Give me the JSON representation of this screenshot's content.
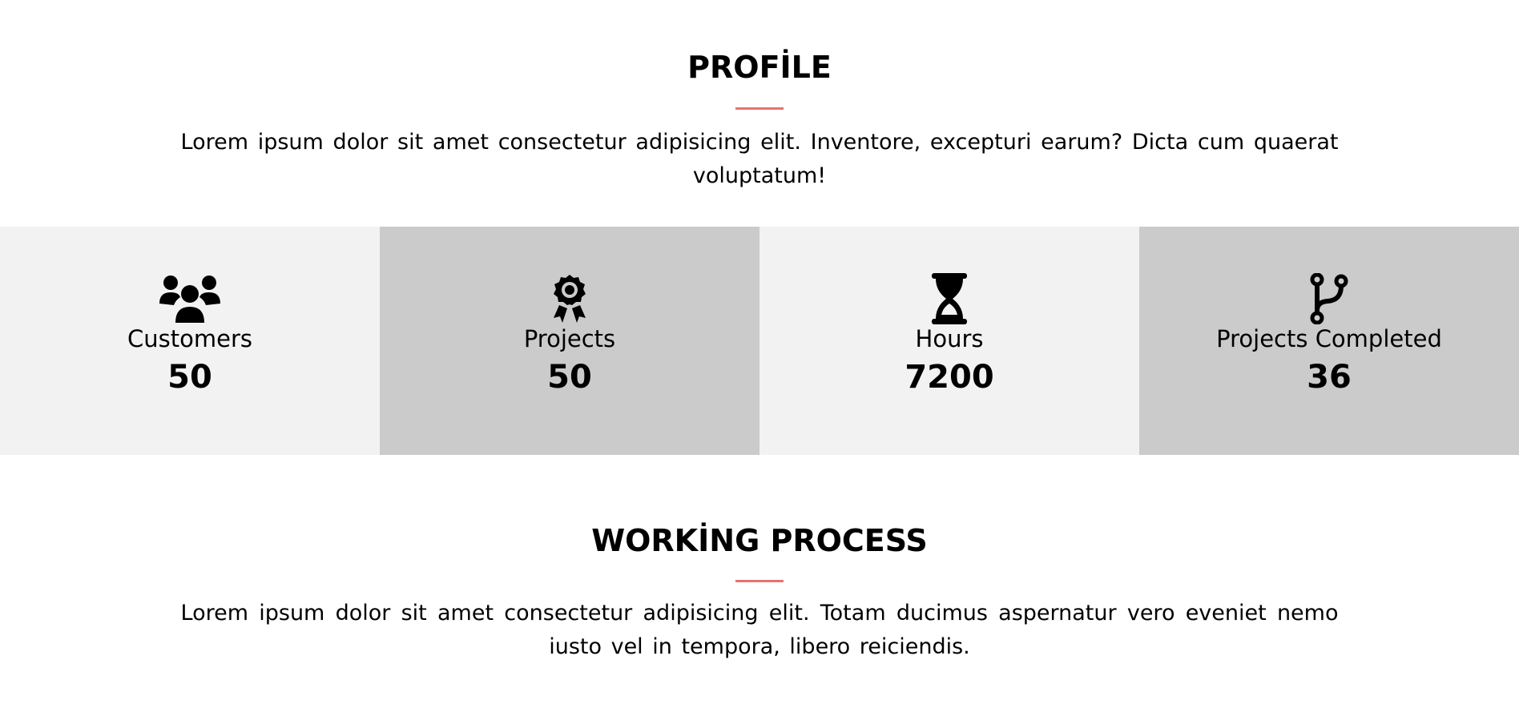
{
  "colors": {
    "accent": "#e8726f",
    "stat_light": "#f2f2f2",
    "stat_dark": "#cbcbcb",
    "text": "#000000"
  },
  "profile": {
    "title": "PROFİLE",
    "description": "Lorem ipsum dolor sit amet consectetur adipisicing elit. Inventore, excepturi earum? Dicta cum quaerat voluptatum!"
  },
  "stats": [
    {
      "icon": "users-icon",
      "label": "Customers",
      "value": "50"
    },
    {
      "icon": "award-icon",
      "label": "Projects",
      "value": "50"
    },
    {
      "icon": "hourglass-icon",
      "label": "Hours",
      "value": "7200"
    },
    {
      "icon": "code-branch-icon",
      "label": "Projects Completed",
      "value": "36"
    }
  ],
  "working_process": {
    "title": "WORKİNG PROCESS",
    "description": "Lorem ipsum dolor sit amet consectetur adipisicing elit. Totam ducimus aspernatur vero eveniet nemo iusto vel in tempora, libero reiciendis."
  }
}
